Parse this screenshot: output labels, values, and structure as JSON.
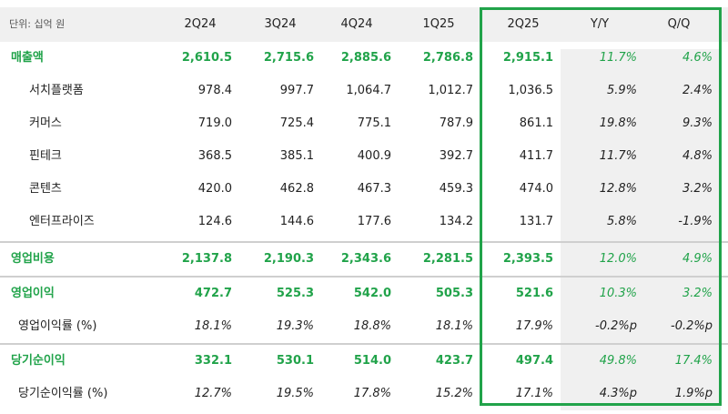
{
  "header": {
    "unit": "단위: 십억 원",
    "cols": [
      "2Q24",
      "3Q24",
      "4Q24",
      "1Q25",
      "2Q25",
      "Y/Y",
      "Q/Q"
    ]
  },
  "rows": [
    {
      "label": "매출액",
      "values": [
        "2,610.5",
        "2,715.6",
        "2,885.6",
        "2,786.8",
        "2,915.1",
        "11.7%",
        "4.6%"
      ]
    },
    {
      "label": "서치플랫폼",
      "values": [
        "978.4",
        "997.7",
        "1,064.7",
        "1,012.7",
        "1,036.5",
        "5.9%",
        "2.4%"
      ]
    },
    {
      "label": "커머스",
      "values": [
        "719.0",
        "725.4",
        "775.1",
        "787.9",
        "861.1",
        "19.8%",
        "9.3%"
      ]
    },
    {
      "label": "핀테크",
      "values": [
        "368.5",
        "385.1",
        "400.9",
        "392.7",
        "411.7",
        "11.7%",
        "4.8%"
      ]
    },
    {
      "label": "콘텐츠",
      "values": [
        "420.0",
        "462.8",
        "467.3",
        "459.3",
        "474.0",
        "12.8%",
        "3.2%"
      ]
    },
    {
      "label": "엔터프라이즈",
      "values": [
        "124.6",
        "144.6",
        "177.6",
        "134.2",
        "131.7",
        "5.8%",
        "-1.9%"
      ]
    },
    {
      "label": "영업비용",
      "values": [
        "2,137.8",
        "2,190.3",
        "2,343.6",
        "2,281.5",
        "2,393.5",
        "12.0%",
        "4.9%"
      ]
    },
    {
      "label": "영업이익",
      "values": [
        "472.7",
        "525.3",
        "542.0",
        "505.3",
        "521.6",
        "10.3%",
        "3.2%"
      ]
    },
    {
      "label": "영업이익률 (%)",
      "values": [
        "18.1%",
        "19.3%",
        "18.8%",
        "18.1%",
        "17.9%",
        "-0.2%p",
        "-0.2%p"
      ]
    },
    {
      "label": "당기순이익",
      "values": [
        "332.1",
        "530.1",
        "514.0",
        "423.7",
        "497.4",
        "49.8%",
        "17.4%"
      ]
    },
    {
      "label": "당기순이익률 (%)",
      "values": [
        "12.7%",
        "19.5%",
        "17.8%",
        "15.2%",
        "17.1%",
        "4.3%p",
        "1.9%p"
      ]
    }
  ],
  "colors": {
    "accent": "#21a34a",
    "header_bg": "#f0f0f0",
    "highlight_border": "#21a34a"
  }
}
